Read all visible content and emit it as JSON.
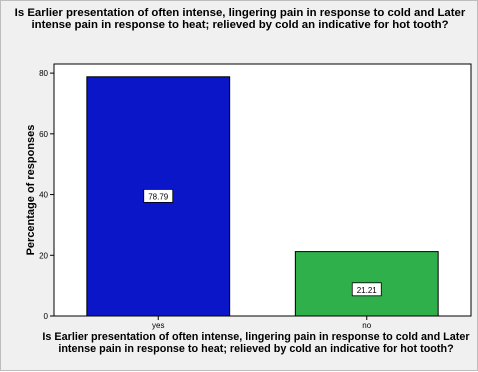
{
  "chart_data": {
    "type": "bar",
    "title": "Is Earlier presentation of often intense, lingering pain in response to cold and Later intense pain in response to heat; relieved by cold an indicative for hot tooth?",
    "xlabel": "Is Earlier presentation of often intense, lingering pain in response to cold and Later intense pain in response to heat; relieved by cold an indicative for hot tooth?",
    "ylabel": "Percentage of responses",
    "categories": [
      "yes",
      "no"
    ],
    "values": [
      78.79,
      21.21
    ],
    "data_labels": [
      "78.79",
      "21.21"
    ],
    "bar_colors": [
      "#0b16c9",
      "#2fb04a"
    ],
    "ylim": [
      0,
      83
    ],
    "yticks": [
      0,
      20,
      40,
      60,
      80
    ],
    "grid": false,
    "legend": "none"
  },
  "colors": {
    "plot_background": "#ffffff",
    "outer_background": "#f0f0f0"
  }
}
